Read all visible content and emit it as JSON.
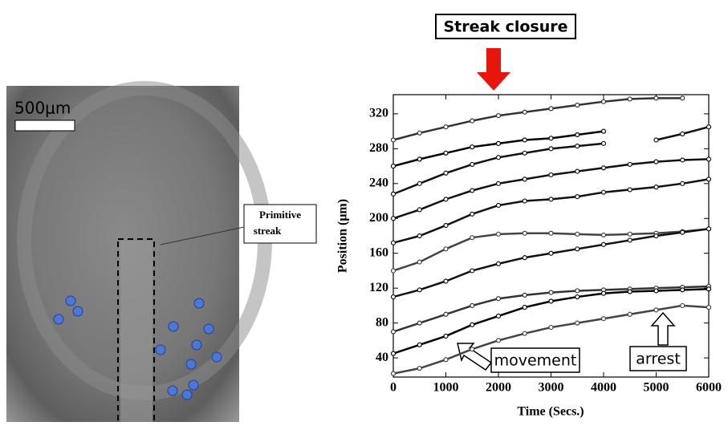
{
  "image_panel": {
    "scale_bar": "500μm",
    "label_lines": [
      "Primitive",
      "streak"
    ]
  },
  "chart_data": {
    "type": "line",
    "xlabel": "Time (Secs.)",
    "ylabel": "Position (μm)",
    "annotations": [
      "Streak closure",
      "movement",
      "arrest"
    ],
    "x": [
      0,
      500,
      1000,
      1500,
      2000,
      2500,
      3000,
      3500,
      4000,
      4500,
      5000,
      5500,
      6000
    ],
    "xlim": [
      0,
      6000
    ],
    "xticks": [
      0,
      1000,
      2000,
      3000,
      4000,
      5000,
      6000
    ],
    "ylim": [
      18,
      342
    ],
    "yticks": [
      40,
      80,
      120,
      160,
      200,
      240,
      280,
      320
    ],
    "series": [
      {
        "color": "#333333",
        "values": [
          290,
          298,
          305,
          312,
          318,
          322,
          326,
          330,
          334,
          337,
          338,
          338,
          null
        ]
      },
      {
        "color": "#000000",
        "values": [
          260,
          268,
          275,
          282,
          286,
          290,
          292,
          296,
          300,
          null,
          null,
          null,
          null
        ]
      },
      {
        "color": "#111111",
        "values": [
          228,
          240,
          252,
          262,
          270,
          275,
          280,
          283,
          286,
          null,
          290,
          297,
          305
        ]
      },
      {
        "color": "#111111",
        "values": [
          200,
          210,
          222,
          232,
          240,
          245,
          250,
          254,
          258,
          262,
          265,
          267,
          268
        ]
      },
      {
        "color": "#111111",
        "values": [
          172,
          180,
          192,
          205,
          215,
          220,
          222,
          225,
          230,
          233,
          236,
          240,
          245
        ]
      },
      {
        "color": "#444444",
        "values": [
          140,
          150,
          165,
          178,
          182,
          183,
          183,
          182,
          181,
          182,
          183,
          185,
          188
        ]
      },
      {
        "color": "#111111",
        "values": [
          110,
          118,
          128,
          140,
          148,
          155,
          160,
          165,
          170,
          175,
          180,
          184,
          188
        ]
      },
      {
        "color": "#333333",
        "values": [
          70,
          80,
          90,
          100,
          108,
          112,
          115,
          117,
          118,
          119,
          120,
          121,
          122
        ]
      },
      {
        "color": "#000000",
        "values": [
          45,
          55,
          65,
          78,
          88,
          98,
          105,
          110,
          114,
          116,
          117,
          118,
          119
        ]
      },
      {
        "color": "#444444",
        "values": [
          22,
          28,
          38,
          50,
          60,
          68,
          75,
          80,
          85,
          90,
          95,
          100,
          98
        ]
      }
    ]
  }
}
